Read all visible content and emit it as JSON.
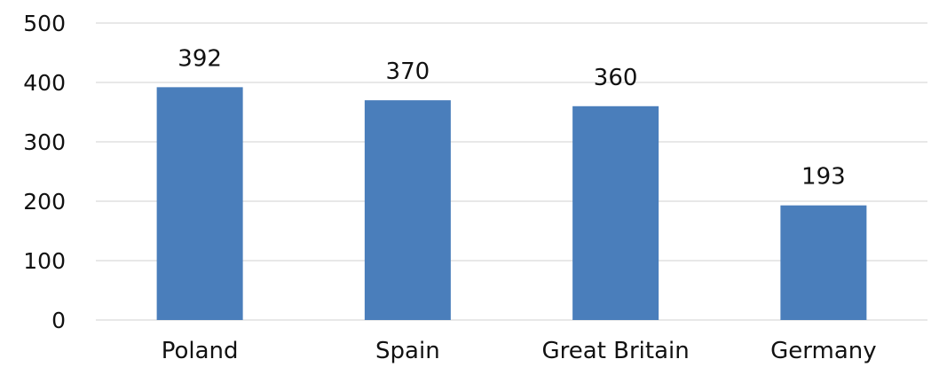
{
  "chart_data": {
    "type": "bar",
    "categories": [
      "Poland",
      "Spain",
      "Great Britain",
      "Germany"
    ],
    "values": [
      392,
      370,
      360,
      193
    ],
    "data_labels": [
      "392",
      "370",
      "360",
      "193"
    ],
    "title": "",
    "xlabel": "",
    "ylabel": "",
    "ylim": [
      0,
      500
    ],
    "yticks": [
      0,
      100,
      200,
      300,
      400,
      500
    ],
    "grid": true,
    "legend": "none",
    "bar_color": "#4a7ebb"
  }
}
